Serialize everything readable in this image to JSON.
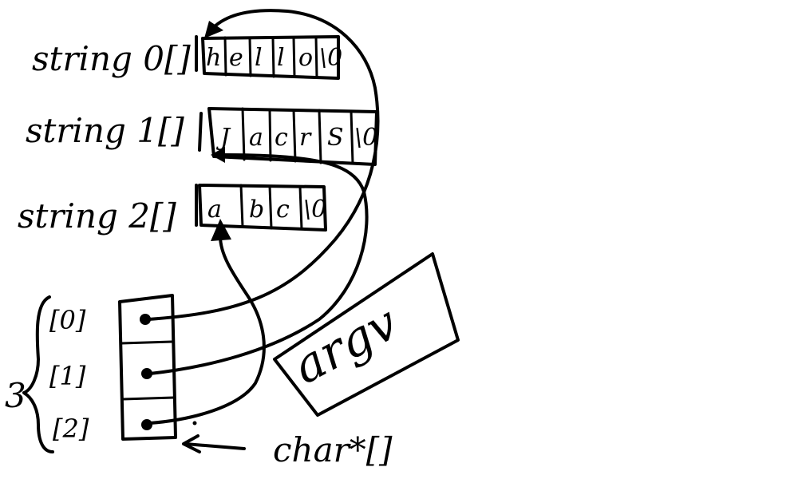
{
  "arrays": [
    {
      "label": "string 0[]",
      "cells": [
        "h",
        "e",
        "l",
        "l",
        "o",
        "\\0"
      ]
    },
    {
      "label": "string 1[]",
      "cells": [
        "J",
        "a",
        "c",
        "r",
        "S",
        "\\0"
      ]
    },
    {
      "label": "string 2[]",
      "cells": [
        "a",
        "b",
        "c",
        "\\0"
      ]
    }
  ],
  "pointer_array": {
    "indices": [
      "[0]",
      "[1]",
      "[2]"
    ],
    "count_label": "3",
    "type_label": "char*[]"
  },
  "note": "argv",
  "colors": {
    "ink": "#000000",
    "background": "#ffffff"
  }
}
